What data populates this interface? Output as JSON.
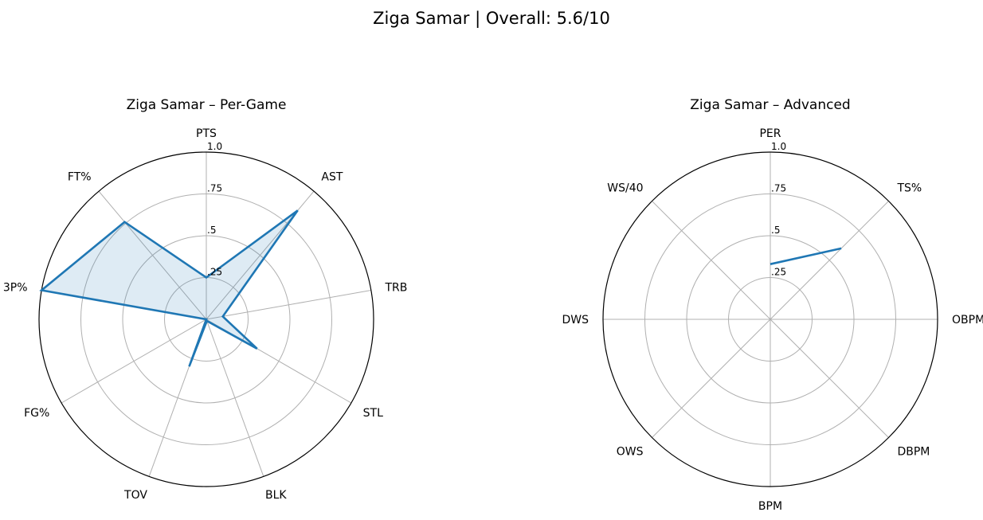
{
  "figure": {
    "suptitle": "Ziga Samar | Overall: 5.6/10"
  },
  "chart_data": [
    {
      "type": "radar",
      "title": "Ziga Samar – Per-Game",
      "axes": [
        "PTS",
        "AST",
        "TRB",
        "STL",
        "BLK",
        "TOV",
        "FG%",
        "3P%",
        "FT%"
      ],
      "radial_ticks": [
        0.25,
        0.5,
        0.75,
        1.0
      ],
      "radial_tick_labels": [
        ".25",
        ".5",
        ".75",
        "1.0"
      ],
      "rlim": [
        0,
        1
      ],
      "grid": true,
      "filled": true,
      "series": [
        {
          "values": [
            0.25,
            0.85,
            0.1,
            0.35,
            0.01,
            0.3,
            0.0,
            1.0,
            0.76
          ]
        }
      ],
      "colors": {
        "line": "#1f77b4",
        "fill": "#1f77b4",
        "grid": "#b0b0b0"
      }
    },
    {
      "type": "radar",
      "title": "Ziga Samar – Advanced",
      "axes": [
        "PER",
        "TS%",
        "OBPM",
        "DBPM",
        "BPM",
        "OWS",
        "DWS",
        "WS/40"
      ],
      "radial_ticks": [
        0.25,
        0.5,
        0.75,
        1.0
      ],
      "radial_tick_labels": [
        ".25",
        ".5",
        ".75",
        "1.0"
      ],
      "rlim": [
        0,
        1
      ],
      "grid": true,
      "filled": false,
      "series": [
        {
          "values": [
            0.33,
            0.6,
            null,
            null,
            null,
            null,
            null,
            null
          ]
        }
      ],
      "colors": {
        "line": "#1f77b4",
        "fill": "#1f77b4",
        "grid": "#b0b0b0"
      }
    }
  ]
}
